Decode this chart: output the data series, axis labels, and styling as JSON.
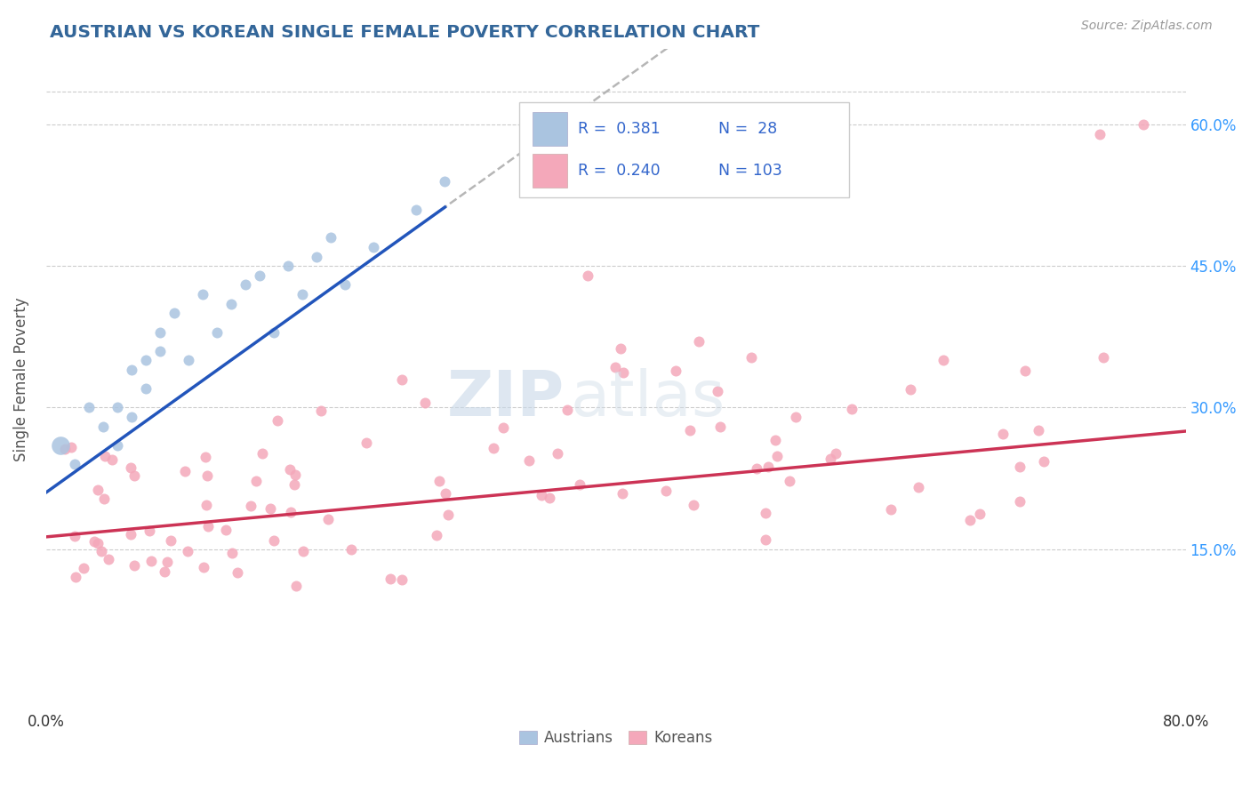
{
  "title": "AUSTRIAN VS KOREAN SINGLE FEMALE POVERTY CORRELATION CHART",
  "source": "Source: ZipAtlas.com",
  "ylabel": "Single Female Poverty",
  "xlim": [
    0.0,
    0.8
  ],
  "ylim": [
    -0.02,
    0.68
  ],
  "plot_ylim": [
    -0.02,
    0.68
  ],
  "xticks": [
    0.0,
    0.1,
    0.2,
    0.3,
    0.4,
    0.5,
    0.6,
    0.7,
    0.8
  ],
  "xticklabels": [
    "0.0%",
    "",
    "",
    "",
    "",
    "",
    "",
    "",
    "80.0%"
  ],
  "ytick_positions": [
    0.15,
    0.3,
    0.45,
    0.6
  ],
  "ytick_labels": [
    "15.0%",
    "30.0%",
    "45.0%",
    "60.0%"
  ],
  "background_color": "#ffffff",
  "grid_color": "#cccccc",
  "watermark_zip": "ZIP",
  "watermark_atlas": "atlas",
  "blue_color": "#aac4e0",
  "pink_color": "#f4a8ba",
  "line_blue": "#2255bb",
  "line_pink": "#cc3355",
  "line_dashed_color": "#aaaaaa",
  "austrians_label": "Austrians",
  "koreans_label": "Koreans",
  "title_color": "#336699",
  "source_color": "#999999",
  "axis_label_color": "#555555",
  "right_tick_color": "#3399ff",
  "legend_text_color": "#3366cc"
}
